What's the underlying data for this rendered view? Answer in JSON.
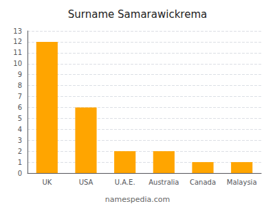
{
  "chart_data": {
    "type": "bar",
    "title": "Surname Samarawickrema",
    "categories": [
      "UK",
      "USA",
      "U.A.E.",
      "Australia",
      "Canada",
      "Malaysia"
    ],
    "values": [
      12,
      6,
      2,
      2,
      1,
      1
    ],
    "color": "#FFA500",
    "ylim": [
      0,
      13
    ],
    "yticks": [
      0,
      1,
      2,
      3,
      4,
      5,
      6,
      7,
      8,
      9,
      10,
      11,
      12,
      13
    ],
    "grid": true,
    "annotations": [
      "namespedia.com"
    ]
  }
}
